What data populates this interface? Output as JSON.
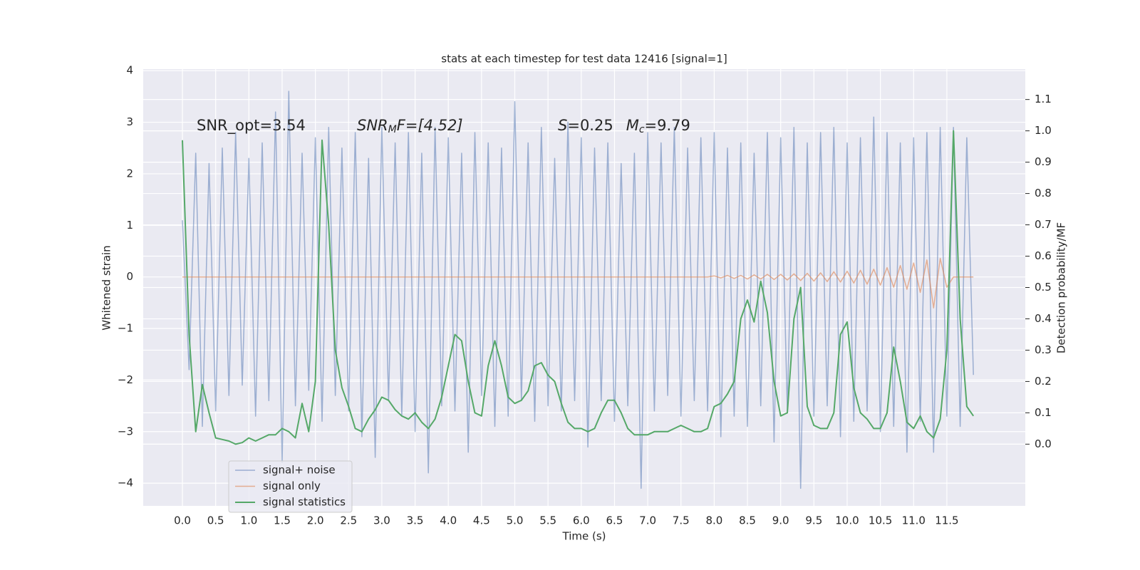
{
  "chart_data": {
    "type": "line",
    "title": "stats at each timestep for test data 12416 [signal=1]",
    "xlabel": "Time (s)",
    "ylabel": "Whitened strain",
    "y2label": "Detection probability/MF",
    "annotations": [
      {
        "parts": [
          "SNR_opt=3.54"
        ]
      },
      {
        "parts": [
          "SNR",
          "M",
          "F=[4.52]"
        ]
      },
      {
        "parts": [
          "S",
          "=0.25",
          "M",
          "c",
          "=9.79"
        ]
      }
    ],
    "grid": true,
    "legend": "lower left",
    "xlim": [
      -0.59,
      12.68
    ],
    "ylim": [
      -4.44,
      4.03
    ],
    "y2lim": [
      -0.197,
      1.197
    ],
    "xticks": [
      {
        "value": 0,
        "label": "0.0"
      },
      0.5,
      {
        "value": 1,
        "label": "1.0"
      },
      1.5,
      {
        "value": 2,
        "label": "2.0"
      },
      2.5,
      {
        "value": 3,
        "label": "3.0"
      },
      3.5,
      {
        "value": 4,
        "label": "4.0"
      },
      4.5,
      {
        "value": 5,
        "label": "5.0"
      },
      5.5,
      {
        "value": 6,
        "label": "6.0"
      },
      6.5,
      {
        "value": 7,
        "label": "7.0"
      },
      7.5,
      {
        "value": 8,
        "label": "8.0"
      },
      8.5,
      {
        "value": 9,
        "label": "9.0"
      },
      9.5,
      {
        "value": 10,
        "label": "10.0"
      },
      10.5,
      {
        "value": 11,
        "label": "11.0"
      },
      11.5
    ],
    "yticks": [
      {
        "value": -4,
        "label": "−4"
      },
      {
        "value": -3,
        "label": "−3"
      },
      {
        "value": -2,
        "label": "−2"
      },
      {
        "value": -1,
        "label": "−1"
      },
      0,
      1,
      2,
      3,
      4
    ],
    "y2ticks": [
      {
        "value": 0,
        "label": "0.0"
      },
      0.1,
      0.2,
      0.3,
      0.4,
      0.5,
      0.6,
      0.7,
      0.8,
      0.9,
      {
        "value": 1,
        "label": "1.0"
      },
      1.1
    ],
    "x": [
      0,
      0.1,
      0.2,
      0.3,
      0.4,
      0.5,
      0.6,
      0.7,
      0.8,
      0.9,
      1,
      1.1,
      1.2,
      1.3,
      1.4,
      1.5,
      1.6,
      1.7,
      1.8,
      1.9,
      2,
      2.1,
      2.2,
      2.3,
      2.4,
      2.5,
      2.6,
      2.7,
      2.8,
      2.9,
      3,
      3.1,
      3.2,
      3.3,
      3.4,
      3.5,
      3.6,
      3.7,
      3.8,
      3.9,
      4,
      4.1,
      4.2,
      4.3,
      4.4,
      4.5,
      4.6,
      4.7,
      4.8,
      4.9,
      5,
      5.1,
      5.2,
      5.3,
      5.4,
      5.5,
      5.6,
      5.7,
      5.8,
      5.9,
      6,
      6.1,
      6.2,
      6.3,
      6.4,
      6.5,
      6.6,
      6.7,
      6.8,
      6.9,
      7,
      7.1,
      7.2,
      7.3,
      7.4,
      7.5,
      7.6,
      7.7,
      7.8,
      7.9,
      8,
      8.1,
      8.2,
      8.3,
      8.4,
      8.5,
      8.6,
      8.7,
      8.8,
      8.9,
      9,
      9.1,
      9.2,
      9.3,
      9.4,
      9.5,
      9.6,
      9.7,
      9.8,
      9.9,
      10,
      10.1,
      10.2,
      10.3,
      10.4,
      10.5,
      10.6,
      10.7,
      10.8,
      10.9,
      11,
      11.1,
      11.2,
      11.3,
      11.4,
      11.5,
      11.6,
      11.7,
      11.8,
      11.9
    ],
    "series": [
      {
        "name": "signal+ noise",
        "color": "#4c72b0",
        "values": [
          1.1,
          -1.8,
          2.4,
          -2.9,
          2.2,
          -2.6,
          2.5,
          -2.3,
          2.8,
          -2.1,
          2.3,
          -2.7,
          2.6,
          -2.4,
          3.2,
          -3.6,
          3.6,
          -2.5,
          2.4,
          -2.2,
          2.7,
          -2.8,
          2.9,
          -2.3,
          2.5,
          -2.6,
          2.8,
          -3.1,
          2.3,
          -3.5,
          2.9,
          -2.4,
          2.6,
          -2.7,
          2.8,
          -3.0,
          2.4,
          -3.8,
          2.9,
          -2.5,
          2.7,
          -2.6,
          2.4,
          -3.4,
          2.8,
          -2.3,
          2.6,
          -2.9,
          2.5,
          -2.7,
          3.4,
          -2.4,
          2.6,
          -2.8,
          2.9,
          -2.5,
          2.3,
          -2.6,
          3.0,
          -2.4,
          2.7,
          -3.3,
          2.5,
          -2.4,
          2.6,
          -2.8,
          2.2,
          -2.5,
          2.4,
          -4.1,
          2.8,
          -2.6,
          2.6,
          -2.3,
          2.9,
          -2.7,
          2.5,
          -2.4,
          2.7,
          -2.6,
          2.8,
          -3.1,
          2.5,
          -2.7,
          2.6,
          -2.9,
          2.4,
          -2.5,
          2.8,
          -3.2,
          2.7,
          -2.6,
          2.9,
          -4.1,
          2.6,
          -2.7,
          2.8,
          -2.5,
          2.9,
          -3.1,
          2.6,
          -2.8,
          2.7,
          -2.6,
          3.1,
          -3.0,
          2.8,
          -2.9,
          2.6,
          -3.4,
          2.7,
          -2.8,
          2.8,
          -3.4,
          2.9,
          -2.7,
          2.9,
          -2.9,
          2.7,
          -1.9
        ]
      },
      {
        "name": "signal only",
        "color": "#dd8452",
        "values": [
          0,
          0,
          0,
          0,
          0,
          0,
          0,
          0,
          0,
          0,
          0,
          0,
          0,
          0,
          0,
          0,
          0,
          0,
          0,
          0,
          0,
          0,
          0,
          0,
          0,
          0,
          0,
          0,
          0,
          0,
          0,
          0,
          0,
          0,
          0,
          0,
          0,
          0,
          0,
          0,
          0,
          0,
          0,
          0,
          0,
          0,
          0,
          0,
          0,
          0,
          0,
          0,
          0,
          0,
          0,
          0,
          0,
          0,
          0,
          0,
          0,
          0,
          0,
          0,
          0,
          0,
          0,
          0,
          0,
          0,
          0,
          0,
          0,
          0,
          0,
          0,
          0,
          0,
          0,
          0,
          0.02,
          -0.02,
          0.03,
          -0.03,
          0.03,
          -0.04,
          0.04,
          -0.04,
          0.05,
          -0.05,
          0.05,
          -0.06,
          0.06,
          -0.07,
          0.07,
          -0.08,
          0.08,
          -0.09,
          0.1,
          -0.1,
          0.11,
          -0.12,
          0.13,
          -0.14,
          0.15,
          -0.16,
          0.18,
          -0.2,
          0.22,
          -0.24,
          0.27,
          -0.3,
          0.33,
          -0.6,
          0.36,
          -0.2,
          0,
          0,
          0,
          0
        ]
      },
      {
        "name": "signal statistics",
        "color": "#55a868",
        "axis": "y2",
        "values": [
          0.97,
          0.35,
          0.04,
          0.19,
          0.1,
          0.02,
          0.015,
          0.01,
          0,
          0.005,
          0.02,
          0.01,
          0.02,
          0.03,
          0.03,
          0.05,
          0.04,
          0.02,
          0.13,
          0.04,
          0.2,
          0.97,
          0.7,
          0.3,
          0.18,
          0.12,
          0.05,
          0.04,
          0.08,
          0.11,
          0.15,
          0.14,
          0.11,
          0.09,
          0.08,
          0.1,
          0.07,
          0.05,
          0.08,
          0.15,
          0.25,
          0.35,
          0.33,
          0.2,
          0.1,
          0.09,
          0.25,
          0.33,
          0.25,
          0.15,
          0.13,
          0.14,
          0.17,
          0.25,
          0.26,
          0.22,
          0.2,
          0.13,
          0.07,
          0.05,
          0.05,
          0.04,
          0.05,
          0.1,
          0.14,
          0.14,
          0.1,
          0.05,
          0.03,
          0.03,
          0.03,
          0.04,
          0.04,
          0.04,
          0.05,
          0.06,
          0.05,
          0.04,
          0.04,
          0.05,
          0.12,
          0.13,
          0.16,
          0.2,
          0.4,
          0.46,
          0.39,
          0.52,
          0.42,
          0.2,
          0.09,
          0.1,
          0.4,
          0.5,
          0.12,
          0.06,
          0.05,
          0.05,
          0.1,
          0.35,
          0.39,
          0.18,
          0.1,
          0.08,
          0.05,
          0.05,
          0.1,
          0.31,
          0.2,
          0.07,
          0.05,
          0.09,
          0.04,
          0.02,
          0.08,
          0.3,
          1.0,
          0.4,
          0.12,
          0.09
        ]
      }
    ]
  }
}
